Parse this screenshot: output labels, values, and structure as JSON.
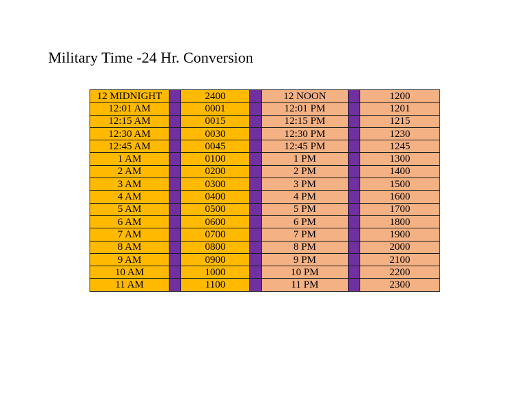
{
  "title": "Military Time -24 Hr. Conversion",
  "colors": {
    "am_fill": "#FFBA00",
    "pm_fill": "#F4B183",
    "separator_fill": "#7030A0"
  },
  "rows": [
    {
      "am": "12 MIDNIGHT",
      "am_24": "2400",
      "pm": "12 NOON",
      "pm_24": "1200"
    },
    {
      "am": "12:01 AM",
      "am_24": "0001",
      "pm": "12:01 PM",
      "pm_24": "1201"
    },
    {
      "am": "12:15 AM",
      "am_24": "0015",
      "pm": "12:15 PM",
      "pm_24": "1215"
    },
    {
      "am": "12:30 AM",
      "am_24": "0030",
      "pm": "12:30 PM",
      "pm_24": "1230"
    },
    {
      "am": "12:45 AM",
      "am_24": "0045",
      "pm": "12:45 PM",
      "pm_24": "1245"
    },
    {
      "am": "1 AM",
      "am_24": "0100",
      "pm": "1 PM",
      "pm_24": "1300"
    },
    {
      "am": "2 AM",
      "am_24": "0200",
      "pm": "2 PM",
      "pm_24": "1400"
    },
    {
      "am": "3 AM",
      "am_24": "0300",
      "pm": "3 PM",
      "pm_24": "1500"
    },
    {
      "am": "4 AM",
      "am_24": "0400",
      "pm": "4 PM",
      "pm_24": "1600"
    },
    {
      "am": "5 AM",
      "am_24": "0500",
      "pm": "5 PM",
      "pm_24": "1700"
    },
    {
      "am": "6 AM",
      "am_24": "0600",
      "pm": "6 PM",
      "pm_24": "1800"
    },
    {
      "am": "7 AM",
      "am_24": "0700",
      "pm": "7 PM",
      "pm_24": "1900"
    },
    {
      "am": "8 AM",
      "am_24": "0800",
      "pm": "8 PM",
      "pm_24": "2000"
    },
    {
      "am": "9 AM",
      "am_24": "0900",
      "pm": "9 PM",
      "pm_24": "2100"
    },
    {
      "am": "10 AM",
      "am_24": "1000",
      "pm": "10 PM",
      "pm_24": "2200"
    },
    {
      "am": "11 AM",
      "am_24": "1100",
      "pm": "11 PM",
      "pm_24": "2300"
    }
  ]
}
